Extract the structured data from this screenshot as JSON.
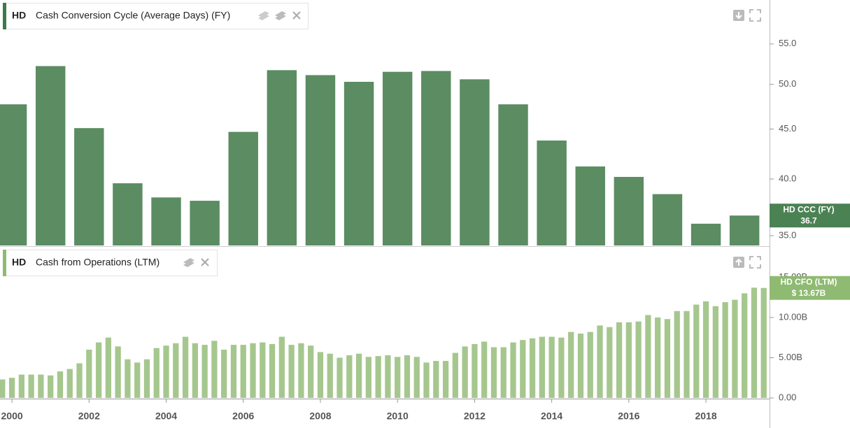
{
  "chart_data": [
    {
      "type": "bar",
      "ticker": "HD",
      "title": "Cash Conversion Cycle (Average Days) (FY)",
      "x": [
        2000,
        2001,
        2002,
        2003,
        2004,
        2005,
        2006,
        2007,
        2008,
        2009,
        2010,
        2011,
        2012,
        2013,
        2014,
        2015,
        2016,
        2017,
        2018,
        2019
      ],
      "values": [
        47.7,
        52.2,
        45.1,
        39.6,
        38.3,
        38.0,
        44.7,
        51.7,
        51.1,
        50.3,
        51.5,
        51.6,
        50.6,
        47.7,
        43.8,
        41.2,
        40.2,
        38.6,
        36.0,
        36.7
      ],
      "color": "#5b8c62",
      "log_scale": true,
      "xlim": [
        1999.69,
        2019.65
      ],
      "ylim": [
        34.2,
        61
      ],
      "yticks": [
        {
          "value": 35,
          "label": "35.0"
        },
        {
          "value": 40,
          "label": "40.0"
        },
        {
          "value": 45,
          "label": "45.0"
        },
        {
          "value": 50,
          "label": "50.0"
        },
        {
          "value": 55,
          "label": "55.0"
        }
      ],
      "badge": {
        "name": "HD CCC (FY)",
        "value": 36.7,
        "color": "#4b8253"
      }
    },
    {
      "type": "bar",
      "ticker": "HD",
      "title": "Cash from Operations (LTM)",
      "x": [
        1999.75,
        2000,
        2000.25,
        2000.5,
        2000.75,
        2001,
        2001.25,
        2001.5,
        2001.75,
        2002,
        2002.25,
        2002.5,
        2002.75,
        2003,
        2003.25,
        2003.5,
        2003.75,
        2004,
        2004.25,
        2004.5,
        2004.75,
        2005,
        2005.25,
        2005.5,
        2005.75,
        2006,
        2006.25,
        2006.5,
        2006.75,
        2007,
        2007.25,
        2007.5,
        2007.75,
        2008,
        2008.25,
        2008.5,
        2008.75,
        2009,
        2009.25,
        2009.5,
        2009.75,
        2010,
        2010.25,
        2010.5,
        2010.75,
        2011,
        2011.25,
        2011.5,
        2011.75,
        2012,
        2012.25,
        2012.5,
        2012.75,
        2013,
        2013.25,
        2013.5,
        2013.75,
        2014,
        2014.25,
        2014.5,
        2014.75,
        2015,
        2015.25,
        2015.5,
        2015.75,
        2016,
        2016.25,
        2016.5,
        2016.75,
        2017,
        2017.25,
        2017.5,
        2017.75,
        2018,
        2018.25,
        2018.5,
        2018.75,
        2019,
        2019.25,
        2019.5
      ],
      "values": [
        2.3,
        2.5,
        2.9,
        2.9,
        2.9,
        2.8,
        3.3,
        3.6,
        4.3,
        6.0,
        6.9,
        7.5,
        6.4,
        4.8,
        4.4,
        4.8,
        6.2,
        6.5,
        6.8,
        7.6,
        6.8,
        6.6,
        7.1,
        6.0,
        6.6,
        6.6,
        6.8,
        6.9,
        6.7,
        7.6,
        6.6,
        6.8,
        6.5,
        5.7,
        5.5,
        5.0,
        5.3,
        5.5,
        5.1,
        5.2,
        5.3,
        5.1,
        5.3,
        5.1,
        4.4,
        4.6,
        4.6,
        5.6,
        6.4,
        6.7,
        7.0,
        6.3,
        6.3,
        6.9,
        7.2,
        7.4,
        7.6,
        7.6,
        7.5,
        8.2,
        8.0,
        8.2,
        9.0,
        8.8,
        9.4,
        9.4,
        9.5,
        10.3,
        10.0,
        9.8,
        10.8,
        10.8,
        11.6,
        12.0,
        11.4,
        11.9,
        12.2,
        13.0,
        13.7,
        13.67
      ],
      "color": "#a5c78e",
      "xlim": [
        1999.69,
        2019.65
      ],
      "ylim": [
        0,
        18.6
      ],
      "yticks": [
        {
          "value": 0,
          "label": "0.00"
        },
        {
          "value": 5,
          "label": "5.00B"
        },
        {
          "value": 10,
          "label": "10.00B"
        },
        {
          "value": 15,
          "label": "15.00B"
        }
      ],
      "xticks": [
        2000,
        2002,
        2004,
        2006,
        2008,
        2010,
        2012,
        2014,
        2016,
        2018
      ],
      "badge": {
        "name": "HD CFO (LTM)",
        "value": 13.67,
        "value_label": "$ 13.67B",
        "color": "#8fba72"
      }
    }
  ]
}
